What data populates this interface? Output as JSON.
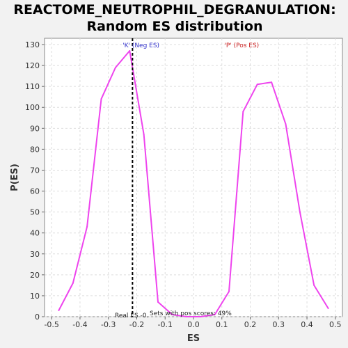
{
  "chart_data": {
    "type": "line",
    "title_line1": "REACTOME_NEUTROPHIL_DEGRANULATION:",
    "title_line2": "Random ES distribution",
    "xlabel": "ES",
    "ylabel": "P(ES)",
    "xlim": [
      -0.525,
      0.525
    ],
    "ylim": [
      0,
      133
    ],
    "x_ticks": [
      -0.5,
      -0.4,
      -0.3,
      -0.2,
      -0.1,
      0.0,
      0.1,
      0.2,
      0.3,
      0.4,
      0.5
    ],
    "x_tick_labels": [
      "-0.5",
      "-0.4",
      "-0.3",
      "-0.2",
      "-0.1",
      "0.0",
      "0.1",
      "0.2",
      "0.3",
      "0.4",
      "0.5"
    ],
    "y_ticks": [
      0,
      10,
      20,
      30,
      40,
      50,
      60,
      70,
      80,
      90,
      100,
      110,
      120,
      130
    ],
    "y_tick_labels": [
      "0",
      "10",
      "20",
      "30",
      "40",
      "50",
      "60",
      "70",
      "80",
      "90",
      "100",
      "110",
      "120",
      "130"
    ],
    "grid": true,
    "series": [
      {
        "color": "#ee44ee",
        "x": [
          -0.475,
          -0.425,
          -0.375,
          -0.325,
          -0.275,
          -0.225,
          -0.175,
          -0.125,
          -0.075,
          -0.025,
          0.025,
          0.075,
          0.125,
          0.175,
          0.225,
          0.275,
          0.325,
          0.375,
          0.425,
          0.475
        ],
        "y": [
          3,
          16,
          43,
          104,
          119,
          127,
          87,
          7,
          1,
          0,
          0,
          1,
          12,
          98,
          111,
          112,
          92,
          50,
          15,
          4
        ]
      }
    ],
    "real_es": -0.215,
    "neg_label": "'K' (Neg ES)",
    "pos_label": "'P' (Pos ES)",
    "real_es_label": "Real ES -0.",
    "pos_scores_label": "Sets with pos scores: 49%",
    "colors": {
      "neg_label": "#3333cc",
      "pos_label": "#cc2222",
      "line": "#ee44ee",
      "real_es_line": "#000000"
    }
  }
}
